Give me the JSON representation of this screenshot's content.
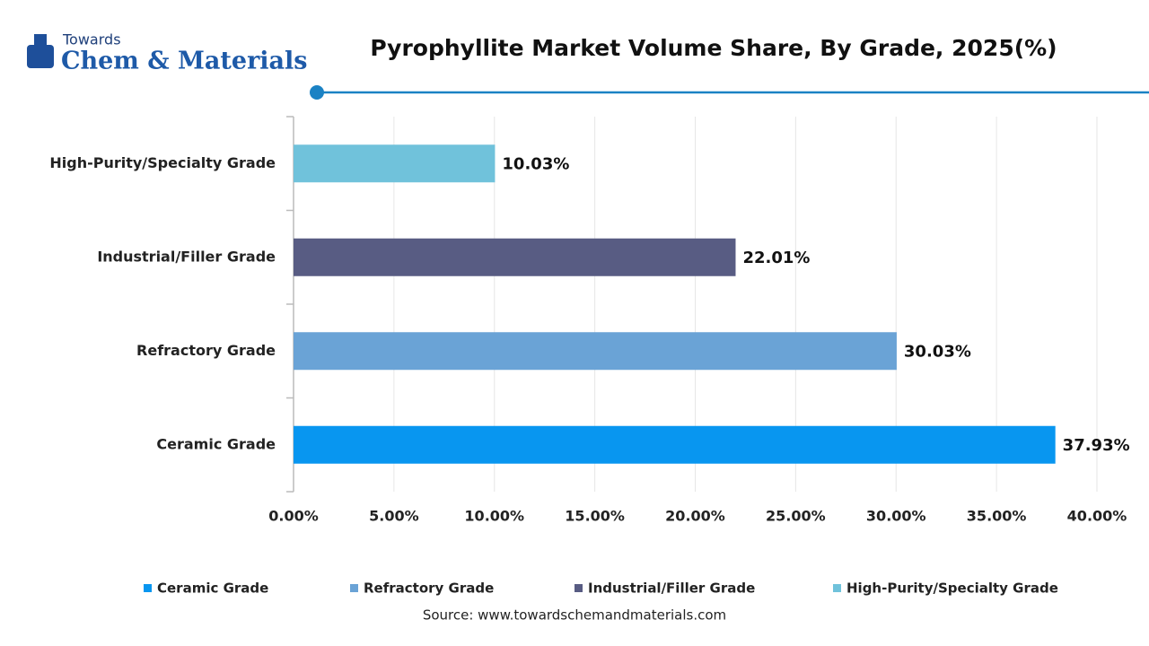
{
  "logo": {
    "top": "Towards",
    "brand": "Chem & Materials"
  },
  "chart_data": {
    "type": "hbar",
    "title": "Pyrophyllite Market Volume Share, By Grade, 2025(%)",
    "categories": [
      "Ceramic Grade",
      "Refractory Grade",
      "Industrial/Filler Grade",
      "High-Purity/Specialty Grade"
    ],
    "values": [
      37.93,
      30.03,
      22.01,
      10.03
    ],
    "value_labels": [
      "37.93%",
      "30.03%",
      "22.01%",
      "10.03%"
    ],
    "colors": [
      "#0896f0",
      "#6aa3d6",
      "#585c83",
      "#70c2db"
    ],
    "xlim": [
      0,
      40
    ],
    "xticks": [
      {
        "value": 0,
        "label": "0.00%"
      },
      {
        "value": 5,
        "label": "5.00%"
      },
      {
        "value": 10,
        "label": "10.00%"
      },
      {
        "value": 15,
        "label": "15.00%"
      },
      {
        "value": 20,
        "label": "20.00%"
      },
      {
        "value": 25,
        "label": "25.00%"
      },
      {
        "value": 30,
        "label": "30.00%"
      },
      {
        "value": 35,
        "label": "35.00%"
      },
      {
        "value": 40,
        "label": "40.00%"
      }
    ],
    "grid": true,
    "source": "Source: www.towardschemandmaterials.com"
  }
}
